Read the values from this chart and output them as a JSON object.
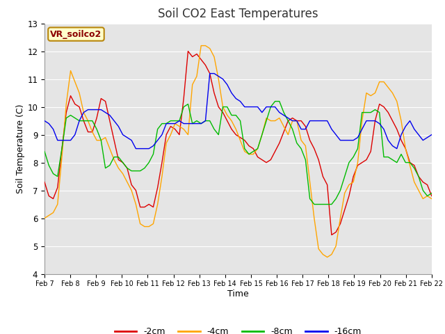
{
  "title": "Soil CO2 East Temperatures",
  "xlabel": "Time",
  "ylabel": "Soil Temperature (C)",
  "ylim": [
    4.0,
    13.0
  ],
  "yticks": [
    4.0,
    5.0,
    6.0,
    7.0,
    8.0,
    9.0,
    10.0,
    11.0,
    12.0,
    13.0
  ],
  "background_color": "#ffffff",
  "plot_bg_color": "#e5e5e5",
  "grid_color": "#ffffff",
  "annotation_text": "VR_soilco2",
  "annotation_color": "#8b0000",
  "annotation_bg": "#ffffcc",
  "annotation_border": "#b8860b",
  "colors": {
    "-2cm": "#dd0000",
    "-4cm": "#ffa500",
    "-8cm": "#00bb00",
    "-16cm": "#0000ee"
  },
  "x_tick_labels": [
    "Feb 7",
    "Feb 8",
    "Feb 9",
    "Feb 10",
    "Feb 11",
    "Feb 12",
    "Feb 13",
    "Feb 14",
    "Feb 15",
    "Feb 16",
    "Feb 17",
    "Feb 18",
    "Feb 19",
    "Feb 20",
    "Feb 21",
    "Feb 22"
  ],
  "data_2cm": [
    7.3,
    6.8,
    6.7,
    7.1,
    8.5,
    9.8,
    10.4,
    10.1,
    10.0,
    9.5,
    9.1,
    9.1,
    9.6,
    10.3,
    10.2,
    9.5,
    8.8,
    8.1,
    8.0,
    7.8,
    7.2,
    7.0,
    6.4,
    6.4,
    6.5,
    6.4,
    7.1,
    8.0,
    9.0,
    9.3,
    9.2,
    9.0,
    10.3,
    12.0,
    11.8,
    11.9,
    11.7,
    11.5,
    11.2,
    10.5,
    10.0,
    9.8,
    9.5,
    9.2,
    9.0,
    8.9,
    8.8,
    8.6,
    8.5,
    8.2,
    8.1,
    8.0,
    8.1,
    8.4,
    8.7,
    9.1,
    9.5,
    9.6,
    9.5,
    9.5,
    9.3,
    8.8,
    8.5,
    8.1,
    7.5,
    7.2,
    5.4,
    5.5,
    5.8,
    6.3,
    6.8,
    7.5,
    7.9,
    8.0,
    8.1,
    8.4,
    9.5,
    10.1,
    10.0,
    9.8,
    9.5,
    9.2,
    8.8,
    8.5,
    8.0,
    7.9,
    7.5,
    7.3,
    7.2,
    6.8
  ],
  "data_4cm": [
    6.0,
    6.1,
    6.2,
    6.5,
    8.2,
    10.1,
    11.3,
    10.9,
    10.5,
    9.8,
    9.5,
    9.1,
    8.8,
    8.8,
    8.9,
    8.5,
    8.1,
    7.8,
    7.6,
    7.3,
    7.0,
    6.5,
    5.8,
    5.7,
    5.7,
    5.8,
    6.5,
    7.5,
    8.7,
    9.0,
    9.4,
    9.3,
    9.2,
    9.0,
    10.8,
    11.1,
    12.2,
    12.2,
    12.1,
    11.8,
    11.0,
    10.0,
    9.7,
    9.5,
    9.2,
    8.8,
    8.4,
    8.3,
    8.3,
    8.5,
    9.0,
    9.6,
    9.5,
    9.5,
    9.6,
    9.3,
    9.0,
    9.5,
    9.5,
    8.8,
    8.6,
    7.3,
    6.0,
    4.9,
    4.7,
    4.6,
    4.7,
    5.0,
    6.0,
    6.9,
    7.2,
    7.3,
    8.0,
    9.5,
    10.5,
    10.4,
    10.5,
    10.9,
    10.9,
    10.7,
    10.5,
    10.2,
    9.5,
    8.5,
    7.9,
    7.3,
    7.0,
    6.7,
    6.8,
    6.7
  ],
  "data_8cm": [
    8.4,
    7.9,
    7.6,
    7.5,
    8.5,
    9.6,
    9.7,
    9.6,
    9.5,
    9.5,
    9.5,
    9.5,
    9.2,
    8.8,
    7.8,
    7.9,
    8.2,
    8.2,
    8.0,
    7.8,
    7.7,
    7.7,
    7.7,
    7.8,
    8.0,
    8.3,
    9.2,
    9.4,
    9.4,
    9.5,
    9.5,
    9.5,
    10.0,
    10.1,
    9.4,
    9.5,
    9.4,
    9.5,
    9.5,
    9.2,
    9.0,
    10.0,
    10.0,
    9.7,
    9.7,
    9.5,
    8.5,
    8.3,
    8.4,
    8.5,
    9.0,
    9.5,
    10.0,
    10.2,
    10.2,
    9.8,
    9.5,
    9.2,
    8.7,
    8.5,
    8.1,
    6.7,
    6.5,
    6.5,
    6.5,
    6.5,
    6.5,
    6.7,
    7.0,
    7.5,
    8.0,
    8.2,
    8.5,
    9.8,
    9.8,
    9.8,
    9.9,
    9.8,
    8.2,
    8.2,
    8.1,
    8.0,
    8.3,
    8.0,
    8.0,
    7.8,
    7.5,
    7.0,
    6.8,
    6.9
  ],
  "data_16cm": [
    9.5,
    9.4,
    9.2,
    8.8,
    8.8,
    8.8,
    8.8,
    9.0,
    9.5,
    9.8,
    9.9,
    9.9,
    9.9,
    9.9,
    9.8,
    9.7,
    9.5,
    9.3,
    9.0,
    8.9,
    8.8,
    8.5,
    8.5,
    8.5,
    8.5,
    8.6,
    8.8,
    9.0,
    9.4,
    9.4,
    9.4,
    9.5,
    9.4,
    9.4,
    9.4,
    9.4,
    9.4,
    9.5,
    11.2,
    11.2,
    11.1,
    11.0,
    10.8,
    10.5,
    10.3,
    10.2,
    10.0,
    10.0,
    10.0,
    10.0,
    9.8,
    10.0,
    10.0,
    10.0,
    9.8,
    9.7,
    9.6,
    9.5,
    9.5,
    9.2,
    9.2,
    9.5,
    9.5,
    9.5,
    9.5,
    9.5,
    9.2,
    9.0,
    8.8,
    8.8,
    8.8,
    8.8,
    8.9,
    9.2,
    9.5,
    9.5,
    9.5,
    9.4,
    9.2,
    8.8,
    8.6,
    8.5,
    9.0,
    9.3,
    9.5,
    9.2,
    9.0,
    8.8,
    8.9,
    9.0
  ]
}
